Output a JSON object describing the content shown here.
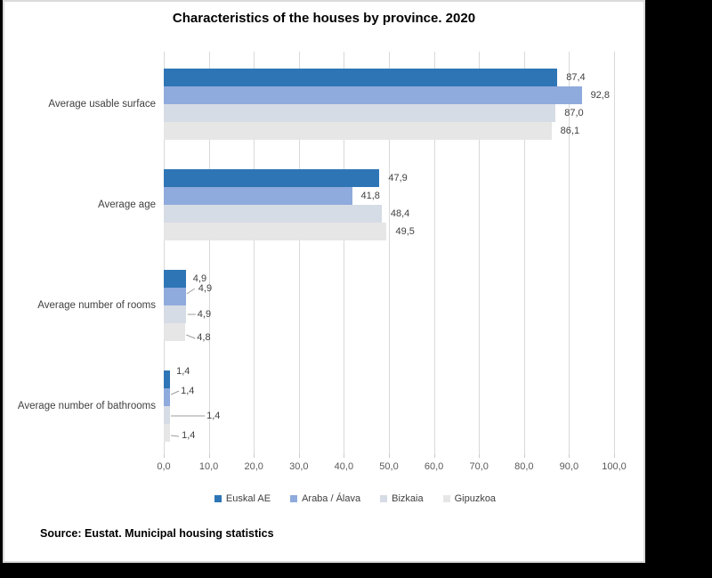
{
  "chart_data": {
    "type": "bar",
    "orientation": "horizontal",
    "title": "Characteristics of the houses by province. 2020",
    "categories": [
      "Average usable surface",
      "Average age",
      "Average number of rooms",
      "Average number of bathrooms"
    ],
    "series": [
      {
        "name": "Euskal AE",
        "color": "#2E75B6",
        "values": [
          87.4,
          47.9,
          4.9,
          1.4
        ],
        "labels": [
          "87,4",
          "47,9",
          "4,9",
          "1,4"
        ]
      },
      {
        "name": "Araba / Álava",
        "color": "#8FAADC",
        "values": [
          92.8,
          41.8,
          4.9,
          1.4
        ],
        "labels": [
          "92,8",
          "41,8",
          "4,9",
          "1,4"
        ]
      },
      {
        "name": "Bizkaia",
        "color": "#D6DCE5",
        "values": [
          87.0,
          48.4,
          4.9,
          1.4
        ],
        "labels": [
          "87,0",
          "48,4",
          "4,9",
          "1,4"
        ]
      },
      {
        "name": "Gipuzkoa",
        "color": "#E7E6E6",
        "values": [
          86.1,
          49.5,
          4.8,
          1.4
        ],
        "labels": [
          "86,1",
          "49,5",
          "4,8",
          "1,4"
        ]
      }
    ],
    "xlim": [
      0,
      100
    ],
    "x_tick_labels": [
      "0,0",
      "10,0",
      "20,0",
      "30,0",
      "40,0",
      "50,0",
      "60,0",
      "70,0",
      "80,0",
      "90,0",
      "100,0"
    ],
    "grid": true,
    "legend_position": "bottom"
  },
  "source_note": "Source: Eustat. Municipal housing statistics",
  "colors": {
    "grid": "#d9d9d9",
    "leader_line": "#9e9e9e",
    "label_text": "#404040",
    "tick_text": "#595959"
  }
}
